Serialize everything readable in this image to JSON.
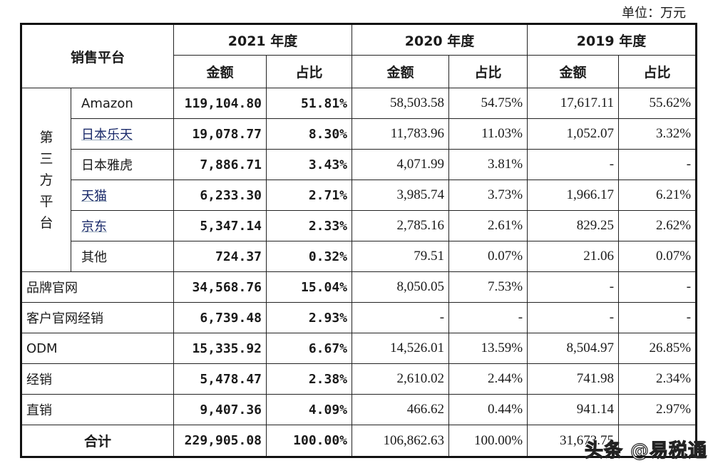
{
  "unit": "单位：万元",
  "header": {
    "platform": "销售平台",
    "years": [
      "2021 年度",
      "2020 年度",
      "2019 年度"
    ],
    "amount": "金额",
    "ratio": "占比"
  },
  "group_label": "第三方平台",
  "rows": [
    {
      "name": "Amazon",
      "v": [
        "119,104.80",
        "51.81%",
        "58,503.58",
        "54.75%",
        "17,617.11",
        "55.62%"
      ]
    },
    {
      "name": "日本乐天",
      "v": [
        "19,078.77",
        "8.30%",
        "11,783.96",
        "11.03%",
        "1,052.07",
        "3.32%"
      ]
    },
    {
      "name": "日本雅虎",
      "v": [
        "7,886.71",
        "3.43%",
        "4,071.99",
        "3.81%",
        "-",
        "-"
      ]
    },
    {
      "name": "天猫",
      "v": [
        "6,233.30",
        "2.71%",
        "3,985.74",
        "3.73%",
        "1,966.17",
        "6.21%"
      ]
    },
    {
      "name": "京东",
      "v": [
        "5,347.14",
        "2.33%",
        "2,785.16",
        "2.61%",
        "829.25",
        "2.62%"
      ]
    },
    {
      "name": "其他",
      "v": [
        "724.37",
        "0.32%",
        "79.51",
        "0.07%",
        "21.06",
        "0.07%"
      ]
    },
    {
      "name": "品牌官网",
      "v": [
        "34,568.76",
        "15.04%",
        "8,050.05",
        "7.53%",
        "-",
        "-"
      ]
    },
    {
      "name": "客户官网经销",
      "v": [
        "6,739.48",
        "2.93%",
        "-",
        "-",
        "-",
        "-"
      ]
    },
    {
      "name": "ODM",
      "v": [
        "15,335.92",
        "6.67%",
        "14,526.01",
        "13.59%",
        "8,504.97",
        "26.85%"
      ]
    },
    {
      "name": "经销",
      "v": [
        "5,478.47",
        "2.38%",
        "2,610.02",
        "2.44%",
        "741.98",
        "2.34%"
      ]
    },
    {
      "name": "直销",
      "v": [
        "9,407.36",
        "4.09%",
        "466.62",
        "0.44%",
        "941.14",
        "2.97%"
      ]
    }
  ],
  "total": {
    "name": "合计",
    "v": [
      "229,905.08",
      "100.00%",
      "106,862.63",
      "100.00%",
      "31,673.75",
      ""
    ]
  },
  "watermark": "头条 @易税通"
}
